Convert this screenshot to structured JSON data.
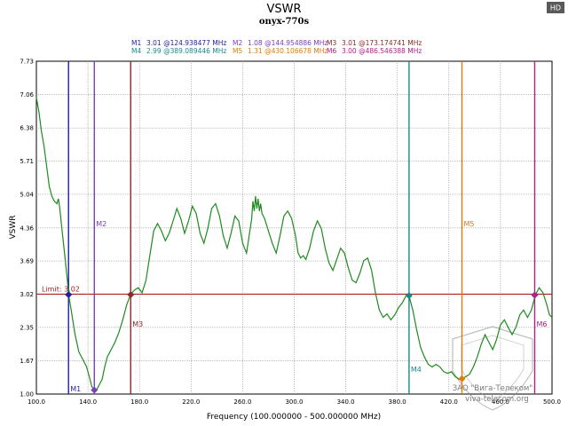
{
  "hd_badge": "HD",
  "watermark": {
    "line1": "ЗАО \"Вига-Телеком\"",
    "line2": "viva-telecom.org"
  },
  "colors": {
    "trace": "#1f8a1f",
    "limit": "#b02020",
    "grid": "#9a9a9a",
    "background": "#ffffff"
  },
  "chart_data": {
    "type": "line",
    "title": "VSWR",
    "subtitle": "onyx-770s",
    "xlabel": "Frequency (100.000000 - 500.000000 MHz)",
    "ylabel": "VSWR",
    "xlim": [
      100,
      500
    ],
    "ylim": [
      1.0,
      7.73
    ],
    "x_ticks": [
      100,
      140,
      180,
      220,
      260,
      300,
      340,
      380,
      420,
      460,
      500
    ],
    "x_tick_labels": [
      "100.0",
      "140.0",
      "180.0",
      "220.0",
      "260.0",
      "300.0",
      "340.0",
      "380.0",
      "420.0",
      "460.0",
      "500.0"
    ],
    "y_ticks": [
      1.0,
      1.67,
      2.35,
      3.02,
      3.69,
      4.36,
      5.04,
      5.71,
      6.38,
      7.06,
      7.73
    ],
    "y_tick_labels": [
      "1.00",
      "1.67",
      "2.35",
      "3.02",
      "3.69",
      "4.36",
      "5.04",
      "5.71",
      "6.38",
      "7.06",
      "7.73"
    ],
    "grid": true,
    "limit": {
      "label": "Limit: 3.02",
      "value": 3.02
    },
    "markers": [
      {
        "name": "M1",
        "value": "3.01",
        "freq": "124.938477 MHz",
        "x": 124.94,
        "y": 3.01,
        "color": "#1f1fa0"
      },
      {
        "name": "M2",
        "value": "1.08",
        "freq": "144.954886 MHz",
        "x": 144.95,
        "y": 1.08,
        "color": "#7a3fc0"
      },
      {
        "name": "M3",
        "value": "3.01",
        "freq": "173.174741 MHz",
        "x": 173.17,
        "y": 3.01,
        "color": "#8b2a2a"
      },
      {
        "name": "M4",
        "value": "2.99",
        "freq": "389.089446 MHz",
        "x": 389.09,
        "y": 2.99,
        "color": "#1a8a8a"
      },
      {
        "name": "M5",
        "value": "1.31",
        "freq": "430.106678 MHz",
        "x": 430.11,
        "y": 1.31,
        "color": "#e07a10"
      },
      {
        "name": "M6",
        "value": "3.00",
        "freq": "486.546388 MHz",
        "x": 486.55,
        "y": 3.0,
        "color": "#b0208a"
      }
    ],
    "series": [
      {
        "points": [
          [
            100,
            7.0
          ],
          [
            102,
            6.7
          ],
          [
            104,
            6.3
          ],
          [
            106,
            6.0
          ],
          [
            108,
            5.6
          ],
          [
            110,
            5.2
          ],
          [
            112,
            5.0
          ],
          [
            114,
            4.9
          ],
          [
            116,
            4.85
          ],
          [
            117,
            4.95
          ],
          [
            118,
            4.8
          ],
          [
            120,
            4.3
          ],
          [
            122,
            3.8
          ],
          [
            124,
            3.3
          ],
          [
            125,
            3.01
          ],
          [
            127,
            2.7
          ],
          [
            130,
            2.2
          ],
          [
            133,
            1.85
          ],
          [
            136,
            1.7
          ],
          [
            139,
            1.55
          ],
          [
            141,
            1.35
          ],
          [
            143,
            1.15
          ],
          [
            145,
            1.08
          ],
          [
            147,
            1.1
          ],
          [
            149,
            1.2
          ],
          [
            151,
            1.3
          ],
          [
            153,
            1.55
          ],
          [
            155,
            1.75
          ],
          [
            157,
            1.85
          ],
          [
            159,
            1.95
          ],
          [
            161,
            2.05
          ],
          [
            164,
            2.25
          ],
          [
            167,
            2.5
          ],
          [
            170,
            2.8
          ],
          [
            173,
            3.01
          ],
          [
            176,
            3.1
          ],
          [
            179,
            3.15
          ],
          [
            182,
            3.05
          ],
          [
            185,
            3.3
          ],
          [
            188,
            3.8
          ],
          [
            191,
            4.3
          ],
          [
            194,
            4.45
          ],
          [
            197,
            4.3
          ],
          [
            200,
            4.1
          ],
          [
            203,
            4.25
          ],
          [
            206,
            4.5
          ],
          [
            209,
            4.75
          ],
          [
            212,
            4.55
          ],
          [
            215,
            4.25
          ],
          [
            218,
            4.5
          ],
          [
            221,
            4.8
          ],
          [
            224,
            4.65
          ],
          [
            227,
            4.25
          ],
          [
            230,
            4.05
          ],
          [
            233,
            4.35
          ],
          [
            236,
            4.75
          ],
          [
            239,
            4.85
          ],
          [
            242,
            4.6
          ],
          [
            245,
            4.2
          ],
          [
            248,
            3.95
          ],
          [
            251,
            4.25
          ],
          [
            254,
            4.6
          ],
          [
            257,
            4.5
          ],
          [
            260,
            4.05
          ],
          [
            263,
            3.85
          ],
          [
            265,
            4.2
          ],
          [
            267,
            4.55
          ],
          [
            268,
            4.9
          ],
          [
            269,
            4.7
          ],
          [
            270,
            5.0
          ],
          [
            271,
            4.75
          ],
          [
            272,
            4.95
          ],
          [
            273,
            4.7
          ],
          [
            274,
            4.85
          ],
          [
            275,
            4.65
          ],
          [
            277,
            4.55
          ],
          [
            280,
            4.3
          ],
          [
            283,
            4.05
          ],
          [
            286,
            3.85
          ],
          [
            289,
            4.2
          ],
          [
            292,
            4.6
          ],
          [
            295,
            4.7
          ],
          [
            298,
            4.55
          ],
          [
            301,
            4.2
          ],
          [
            303,
            3.85
          ],
          [
            305,
            3.75
          ],
          [
            307,
            3.8
          ],
          [
            309,
            3.72
          ],
          [
            312,
            3.95
          ],
          [
            315,
            4.3
          ],
          [
            318,
            4.5
          ],
          [
            321,
            4.35
          ],
          [
            324,
            3.95
          ],
          [
            327,
            3.65
          ],
          [
            330,
            3.5
          ],
          [
            333,
            3.72
          ],
          [
            336,
            3.95
          ],
          [
            339,
            3.85
          ],
          [
            342,
            3.55
          ],
          [
            345,
            3.3
          ],
          [
            348,
            3.25
          ],
          [
            351,
            3.45
          ],
          [
            354,
            3.7
          ],
          [
            357,
            3.75
          ],
          [
            360,
            3.5
          ],
          [
            363,
            3.05
          ],
          [
            366,
            2.7
          ],
          [
            369,
            2.55
          ],
          [
            372,
            2.62
          ],
          [
            375,
            2.5
          ],
          [
            378,
            2.6
          ],
          [
            381,
            2.75
          ],
          [
            384,
            2.85
          ],
          [
            387,
            3.0
          ],
          [
            389,
            2.99
          ],
          [
            392,
            2.7
          ],
          [
            395,
            2.3
          ],
          [
            398,
            1.95
          ],
          [
            401,
            1.75
          ],
          [
            404,
            1.6
          ],
          [
            407,
            1.55
          ],
          [
            410,
            1.6
          ],
          [
            413,
            1.55
          ],
          [
            416,
            1.45
          ],
          [
            419,
            1.42
          ],
          [
            422,
            1.45
          ],
          [
            425,
            1.35
          ],
          [
            428,
            1.3
          ],
          [
            430,
            1.31
          ],
          [
            433,
            1.35
          ],
          [
            436,
            1.4
          ],
          [
            439,
            1.55
          ],
          [
            442,
            1.75
          ],
          [
            445,
            2.0
          ],
          [
            448,
            2.2
          ],
          [
            451,
            2.05
          ],
          [
            454,
            1.9
          ],
          [
            457,
            2.1
          ],
          [
            460,
            2.4
          ],
          [
            463,
            2.5
          ],
          [
            466,
            2.35
          ],
          [
            469,
            2.2
          ],
          [
            472,
            2.35
          ],
          [
            475,
            2.6
          ],
          [
            478,
            2.7
          ],
          [
            481,
            2.55
          ],
          [
            484,
            2.7
          ],
          [
            487,
            3.0
          ],
          [
            490,
            3.15
          ],
          [
            493,
            3.05
          ],
          [
            496,
            2.8
          ],
          [
            498,
            2.6
          ],
          [
            500,
            2.55
          ]
        ]
      }
    ]
  }
}
